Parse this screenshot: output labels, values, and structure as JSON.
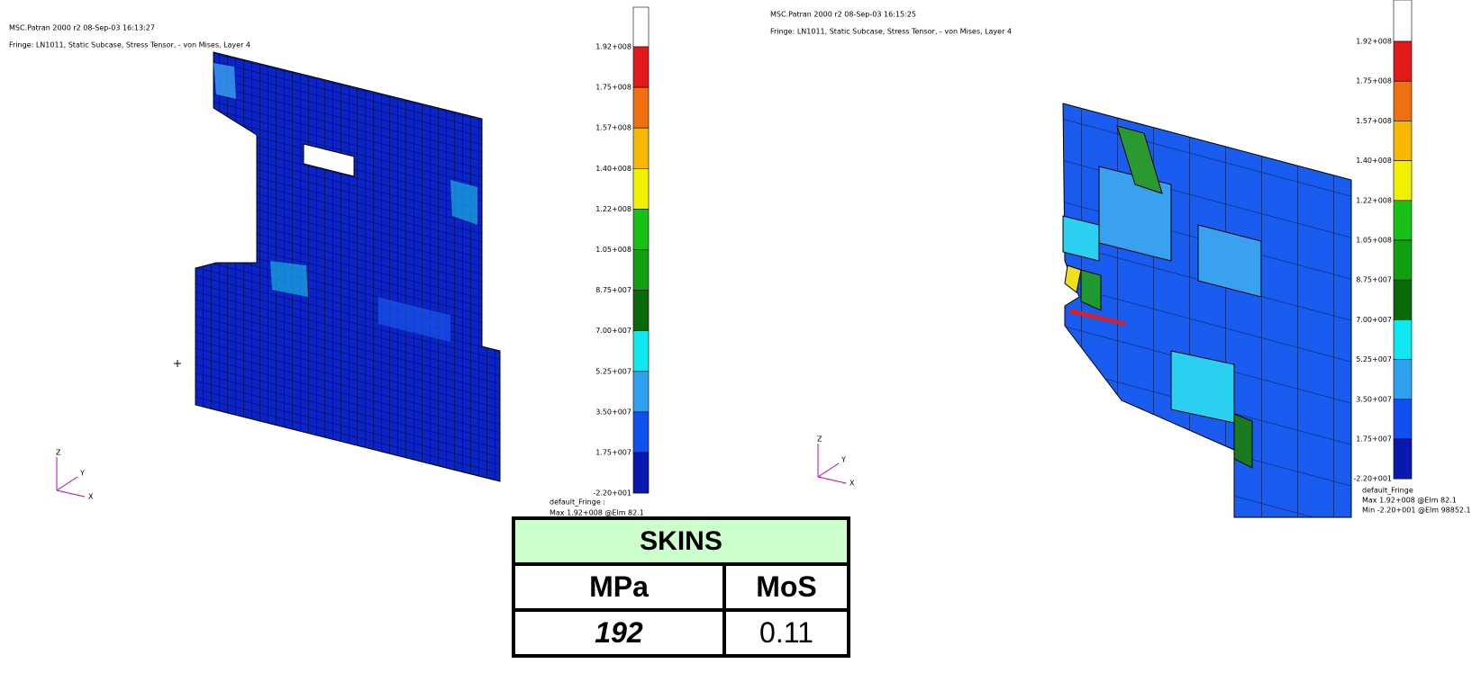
{
  "left_view": {
    "header": [
      "MSC.Patran 2000 r2 08-Sep-03 16:13:27",
      "Fringe: LN1011, Static Subcase, Stress Tensor, - von Mises, Layer 4"
    ],
    "legend": [
      "1.92+008",
      "1.75+008",
      "1.57+008",
      "1.40+008",
      "1.22+008",
      "1.05+008",
      "8.75+007",
      "7.00+007",
      "5.25+007",
      "3.50+007",
      "1.75+007",
      "-2.20+001"
    ],
    "footer": [
      "default_Fringe :",
      "Max 1.92+008 @Elm 82.1"
    ],
    "axes": [
      "Z",
      "Y",
      "X"
    ]
  },
  "right_view": {
    "header": [
      "MSC.Patran 2000 r2 08-Sep-03 16:15:25",
      "Fringe: LN1011, Static Subcase, Stress Tensor, - von Mises, Layer 4"
    ],
    "legend": [
      "1.92+008",
      "1.75+008",
      "1.57+008",
      "1.40+008",
      "1.22+008",
      "1.05+008",
      "8.75+007",
      "7.00+007",
      "5.25+007",
      "3.50+007",
      "1.75+007",
      "-2.20+001"
    ],
    "footer": [
      "default_Fringe",
      "Max 1.92+008 @Elm 82.1",
      "Min -2.20+001 @Elm 98852.1"
    ],
    "axes": [
      "Z",
      "Y",
      "X"
    ]
  },
  "table": {
    "title": "SKINS",
    "header": [
      "MPa",
      "MoS"
    ],
    "rows": [
      [
        "192",
        "0.11"
      ]
    ]
  }
}
